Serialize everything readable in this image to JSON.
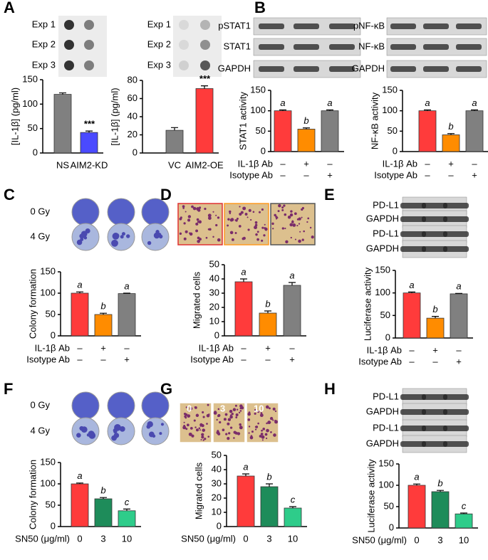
{
  "chart_data": [
    {
      "type": "bar",
      "panel": "A",
      "blot_labels": [
        "Exp 1",
        "Exp 2",
        "Exp 3"
      ],
      "ylabel": "[IL-1β] (pg/ml)",
      "categories": [
        "NS",
        "AIM2-KD"
      ],
      "values": [
        120,
        42
      ],
      "errors": [
        3,
        3
      ],
      "annotations": [
        null,
        "***"
      ],
      "colors": [
        "#808080",
        "#4a4aff"
      ],
      "ylim": [
        0,
        150
      ],
      "yticks": [
        0,
        50,
        100,
        150
      ]
    },
    {
      "type": "bar",
      "blot_labels": [
        "Exp 1",
        "Exp 2",
        "Exp 3"
      ],
      "ylabel": "[IL-1β] (pg/ml)",
      "categories": [
        "VC",
        "AIM2-OE"
      ],
      "values": [
        25,
        71
      ],
      "errors": [
        3,
        3
      ],
      "annotations": [
        null,
        "***"
      ],
      "colors": [
        "#808080",
        "#ff3b3b"
      ],
      "ylim": [
        0,
        80
      ],
      "yticks": [
        0,
        20,
        40,
        60,
        80
      ]
    },
    {
      "type": "bar",
      "panel": "B",
      "blot_labels": [
        "pSTAT1",
        "STAT1",
        "GAPDH"
      ],
      "ylabel": "STAT1 activity",
      "categories": [
        null,
        null,
        null
      ],
      "values": [
        100,
        55,
        100
      ],
      "errors": [
        2,
        3,
        2
      ],
      "annotations": [
        "a",
        "b",
        "a"
      ],
      "treatments": [
        {
          "name": "IL-1β Ab",
          "marks": [
            "–",
            "+",
            "–"
          ]
        },
        {
          "name": "Isotype Ab",
          "marks": [
            "–",
            "–",
            "+"
          ]
        }
      ],
      "colors": [
        "#ff3b3b",
        "#ff8c00",
        "#808080"
      ],
      "ylim": [
        0,
        150
      ],
      "yticks": [
        0,
        50,
        100,
        150
      ]
    },
    {
      "type": "bar",
      "blot_labels": [
        "pNF-κB",
        "NF-κB",
        "GAPDH"
      ],
      "ylabel": "NF-κB activity",
      "categories": [
        null,
        null,
        null
      ],
      "values": [
        100,
        41,
        100
      ],
      "errors": [
        2,
        3,
        2
      ],
      "annotations": [
        "a",
        "b",
        "a"
      ],
      "treatments": [
        {
          "name": "IL-1β Ab",
          "marks": [
            "–",
            "+",
            "–"
          ]
        },
        {
          "name": "Isotype Ab",
          "marks": [
            "–",
            "–",
            "+"
          ]
        }
      ],
      "colors": [
        "#ff3b3b",
        "#ff8c00",
        "#808080"
      ],
      "ylim": [
        0,
        150
      ],
      "yticks": [
        0,
        50,
        100,
        150
      ]
    },
    {
      "type": "bar",
      "panel": "C",
      "blot_labels": [
        "0 Gy",
        "4 Gy"
      ],
      "ylabel": "Colony formation",
      "categories": [
        null,
        null,
        null
      ],
      "values": [
        100,
        50,
        99
      ],
      "errors": [
        3,
        3,
        1
      ],
      "annotations": [
        "a",
        "b",
        "a"
      ],
      "treatments": [
        {
          "name": "IL-1β Ab",
          "marks": [
            "–",
            "+",
            "–"
          ]
        },
        {
          "name": "Isotype Ab",
          "marks": [
            "–",
            "–",
            "+"
          ]
        }
      ],
      "colors": [
        "#ff3b3b",
        "#ff8c00",
        "#808080"
      ],
      "ylim": [
        0,
        150
      ],
      "yticks": [
        0,
        50,
        100,
        150
      ]
    },
    {
      "type": "bar",
      "panel": "D",
      "ylabel": "Migrated cells",
      "categories": [
        null,
        null,
        null
      ],
      "values": [
        38,
        16,
        35.5
      ],
      "errors": [
        2,
        1.5,
        2
      ],
      "annotations": [
        "a",
        "b",
        "a"
      ],
      "treatments": [
        {
          "name": "IL-1β Ab",
          "marks": [
            "–",
            "+",
            "–"
          ]
        },
        {
          "name": "Isotype Ab",
          "marks": [
            "–",
            "–",
            "+"
          ]
        }
      ],
      "colors": [
        "#ff3b3b",
        "#ff8c00",
        "#808080"
      ],
      "ylim": [
        0,
        50
      ],
      "yticks": [
        0,
        10,
        20,
        30,
        40,
        50
      ]
    },
    {
      "type": "bar",
      "panel": "E",
      "blot_labels": [
        "PD-L1",
        "GAPDH",
        "PD-L1",
        "GAPDH"
      ],
      "ylabel": "Luciferase activity",
      "categories": [
        null,
        null,
        null
      ],
      "values": [
        100,
        44,
        98
      ],
      "errors": [
        2,
        4,
        1
      ],
      "annotations": [
        "a",
        "b",
        "a"
      ],
      "treatments": [
        {
          "name": "IL-1β Ab",
          "marks": [
            "–",
            "+",
            "–"
          ]
        },
        {
          "name": "Isotype Ab",
          "marks": [
            "–",
            "–",
            "+"
          ]
        }
      ],
      "colors": [
        "#ff3b3b",
        "#ff8c00",
        "#808080"
      ],
      "ylim": [
        0,
        150
      ],
      "yticks": [
        0,
        50,
        100,
        150
      ]
    },
    {
      "type": "bar",
      "panel": "F",
      "blot_labels": [
        "0 Gy",
        "4 Gy"
      ],
      "ylabel": "Colony formation",
      "xlabel": "SN50 (μg/ml)",
      "categories": [
        "0",
        "3",
        "10"
      ],
      "values": [
        100,
        65,
        37
      ],
      "errors": [
        2,
        3,
        4
      ],
      "annotations": [
        "a",
        "b",
        "c"
      ],
      "colors": [
        "#ff3b3b",
        "#1e8c5a",
        "#2ecc8a"
      ],
      "ylim": [
        0,
        150
      ],
      "yticks": [
        0,
        50,
        100,
        150
      ]
    },
    {
      "type": "bar",
      "panel": "G",
      "image_labels": [
        "0",
        "3",
        "10"
      ],
      "ylabel": "Migrated cells",
      "xlabel": "SN50 (μg/ml)",
      "categories": [
        "0",
        "3",
        "10"
      ],
      "values": [
        35.5,
        28,
        13
      ],
      "errors": [
        1.5,
        2,
        1
      ],
      "annotations": [
        "a",
        "b",
        "c"
      ],
      "colors": [
        "#ff3b3b",
        "#1e8c5a",
        "#2ecc8a"
      ],
      "ylim": [
        0,
        50
      ],
      "yticks": [
        0,
        10,
        20,
        30,
        40,
        50
      ]
    },
    {
      "type": "bar",
      "panel": "H",
      "blot_labels": [
        "PD-L1",
        "GAPDH",
        "PD-L1",
        "GAPDH"
      ],
      "ylabel": "Luciferase activity",
      "xlabel": "SN50 (μg/ml)",
      "categories": [
        "0",
        "3",
        "10"
      ],
      "values": [
        100,
        85,
        33
      ],
      "errors": [
        3,
        3,
        2
      ],
      "annotations": [
        "a",
        "b",
        "c"
      ],
      "colors": [
        "#ff3b3b",
        "#1e8c5a",
        "#2ecc8a"
      ],
      "ylim": [
        0,
        150
      ],
      "yticks": [
        0,
        50,
        100,
        150
      ]
    }
  ]
}
